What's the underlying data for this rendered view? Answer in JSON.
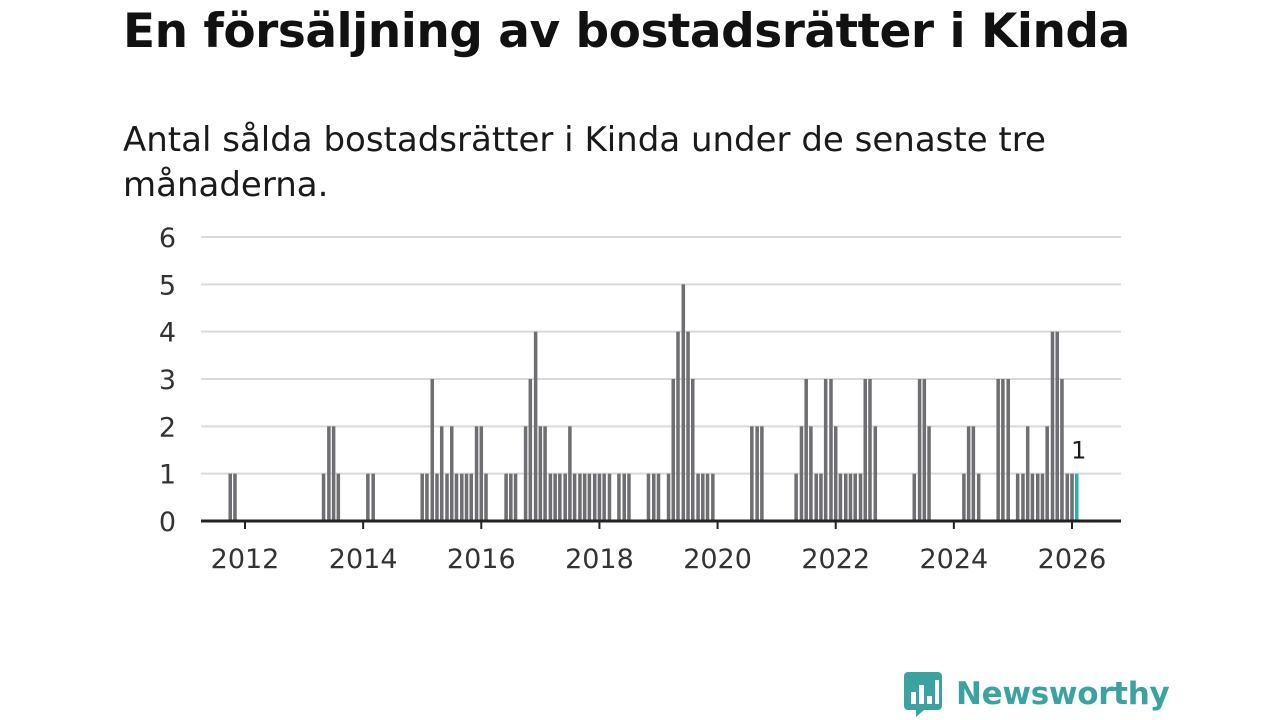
{
  "header": {
    "title": "En försäljning av bostadsrätter i Kinda",
    "subtitle": "Antal sålda bostadsrätter i Kinda under de senaste tre månaderna."
  },
  "brand": {
    "name": "Newsworthy"
  },
  "colors": {
    "bar": "#6e6e73",
    "highlight": "#2ab0ad",
    "grid": "#d9d9d9",
    "axis": "#222222",
    "brand": "#3aa3a0"
  },
  "chart_data": {
    "type": "bar",
    "title": "En försäljning av bostadsrätter i Kinda",
    "subtitle": "Antal sålda bostadsrätter i Kinda under de senaste tre månaderna.",
    "xlabel": "",
    "ylabel": "",
    "ylim": [
      0,
      6
    ],
    "y_ticks": [
      "0",
      "1",
      "2",
      "3",
      "4",
      "5",
      "6"
    ],
    "x_ticks": [
      "2012",
      "2014",
      "2016",
      "2018",
      "2020",
      "2022",
      "2024",
      "2026"
    ],
    "x_range": [
      2011,
      2026.6
    ],
    "grid": true,
    "bar_period": "month",
    "series": [
      {
        "name": "Antal sålda bostadsrätter",
        "values": [
          {
            "t": 2011.75,
            "v": 1
          },
          {
            "t": 2011.83,
            "v": 1
          },
          {
            "t": 2013.33,
            "v": 1
          },
          {
            "t": 2013.42,
            "v": 2
          },
          {
            "t": 2013.5,
            "v": 2
          },
          {
            "t": 2013.58,
            "v": 1
          },
          {
            "t": 2014.08,
            "v": 1
          },
          {
            "t": 2014.17,
            "v": 1
          },
          {
            "t": 2015.0,
            "v": 1
          },
          {
            "t": 2015.08,
            "v": 1
          },
          {
            "t": 2015.17,
            "v": 3
          },
          {
            "t": 2015.25,
            "v": 1
          },
          {
            "t": 2015.33,
            "v": 2
          },
          {
            "t": 2015.42,
            "v": 1
          },
          {
            "t": 2015.5,
            "v": 2
          },
          {
            "t": 2015.58,
            "v": 1
          },
          {
            "t": 2015.67,
            "v": 1
          },
          {
            "t": 2015.75,
            "v": 1
          },
          {
            "t": 2015.83,
            "v": 1
          },
          {
            "t": 2015.92,
            "v": 2
          },
          {
            "t": 2016.0,
            "v": 2
          },
          {
            "t": 2016.08,
            "v": 1
          },
          {
            "t": 2016.42,
            "v": 1
          },
          {
            "t": 2016.5,
            "v": 1
          },
          {
            "t": 2016.58,
            "v": 1
          },
          {
            "t": 2016.75,
            "v": 2
          },
          {
            "t": 2016.83,
            "v": 3
          },
          {
            "t": 2016.92,
            "v": 4
          },
          {
            "t": 2017.0,
            "v": 2
          },
          {
            "t": 2017.08,
            "v": 2
          },
          {
            "t": 2017.17,
            "v": 1
          },
          {
            "t": 2017.25,
            "v": 1
          },
          {
            "t": 2017.33,
            "v": 1
          },
          {
            "t": 2017.42,
            "v": 1
          },
          {
            "t": 2017.5,
            "v": 2
          },
          {
            "t": 2017.58,
            "v": 1
          },
          {
            "t": 2017.67,
            "v": 1
          },
          {
            "t": 2017.75,
            "v": 1
          },
          {
            "t": 2017.83,
            "v": 1
          },
          {
            "t": 2017.92,
            "v": 1
          },
          {
            "t": 2018.0,
            "v": 1
          },
          {
            "t": 2018.08,
            "v": 1
          },
          {
            "t": 2018.17,
            "v": 1
          },
          {
            "t": 2018.33,
            "v": 1
          },
          {
            "t": 2018.42,
            "v": 1
          },
          {
            "t": 2018.5,
            "v": 1
          },
          {
            "t": 2018.83,
            "v": 1
          },
          {
            "t": 2018.92,
            "v": 1
          },
          {
            "t": 2019.0,
            "v": 1
          },
          {
            "t": 2019.17,
            "v": 1
          },
          {
            "t": 2019.25,
            "v": 3
          },
          {
            "t": 2019.33,
            "v": 4
          },
          {
            "t": 2019.42,
            "v": 5
          },
          {
            "t": 2019.5,
            "v": 4
          },
          {
            "t": 2019.58,
            "v": 3
          },
          {
            "t": 2019.67,
            "v": 1
          },
          {
            "t": 2019.75,
            "v": 1
          },
          {
            "t": 2019.83,
            "v": 1
          },
          {
            "t": 2019.92,
            "v": 1
          },
          {
            "t": 2020.58,
            "v": 2
          },
          {
            "t": 2020.67,
            "v": 2
          },
          {
            "t": 2020.75,
            "v": 2
          },
          {
            "t": 2021.33,
            "v": 1
          },
          {
            "t": 2021.42,
            "v": 2
          },
          {
            "t": 2021.5,
            "v": 3
          },
          {
            "t": 2021.58,
            "v": 2
          },
          {
            "t": 2021.67,
            "v": 1
          },
          {
            "t": 2021.75,
            "v": 1
          },
          {
            "t": 2021.83,
            "v": 3
          },
          {
            "t": 2021.92,
            "v": 3
          },
          {
            "t": 2022.0,
            "v": 2
          },
          {
            "t": 2022.08,
            "v": 1
          },
          {
            "t": 2022.17,
            "v": 1
          },
          {
            "t": 2022.25,
            "v": 1
          },
          {
            "t": 2022.33,
            "v": 1
          },
          {
            "t": 2022.42,
            "v": 1
          },
          {
            "t": 2022.5,
            "v": 3
          },
          {
            "t": 2022.58,
            "v": 3
          },
          {
            "t": 2022.67,
            "v": 2
          },
          {
            "t": 2023.33,
            "v": 1
          },
          {
            "t": 2023.42,
            "v": 3
          },
          {
            "t": 2023.5,
            "v": 3
          },
          {
            "t": 2023.58,
            "v": 2
          },
          {
            "t": 2024.17,
            "v": 1
          },
          {
            "t": 2024.25,
            "v": 2
          },
          {
            "t": 2024.33,
            "v": 2
          },
          {
            "t": 2024.42,
            "v": 1
          },
          {
            "t": 2024.75,
            "v": 3
          },
          {
            "t": 2024.83,
            "v": 3
          },
          {
            "t": 2024.92,
            "v": 3
          },
          {
            "t": 2025.08,
            "v": 1
          },
          {
            "t": 2025.17,
            "v": 1
          },
          {
            "t": 2025.25,
            "v": 2
          },
          {
            "t": 2025.33,
            "v": 1
          },
          {
            "t": 2025.42,
            "v": 1
          },
          {
            "t": 2025.5,
            "v": 1
          },
          {
            "t": 2025.58,
            "v": 2
          },
          {
            "t": 2025.67,
            "v": 4
          },
          {
            "t": 2025.75,
            "v": 4
          },
          {
            "t": 2025.83,
            "v": 3
          },
          {
            "t": 2025.92,
            "v": 1
          },
          {
            "t": 2026.0,
            "v": 1
          }
        ]
      }
    ],
    "highlight": {
      "t": 2026.08,
      "v": 1,
      "label": "1"
    }
  }
}
